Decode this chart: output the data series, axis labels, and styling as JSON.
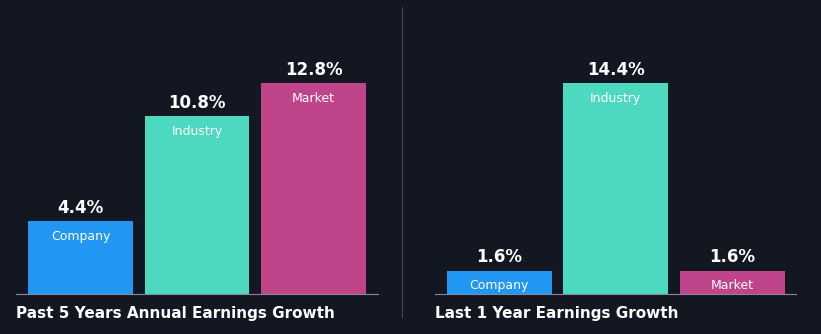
{
  "background_color": "#131722",
  "chart1": {
    "title": "Past 5 Years Annual Earnings Growth",
    "categories": [
      "Company",
      "Industry",
      "Market"
    ],
    "values": [
      4.4,
      10.8,
      12.8
    ],
    "colors": [
      "#2196f3",
      "#4dd9c0",
      "#c0448a"
    ],
    "labels": [
      "4.4%",
      "10.8%",
      "12.8%"
    ]
  },
  "chart2": {
    "title": "Last 1 Year Earnings Growth",
    "categories": [
      "Company",
      "Industry",
      "Market"
    ],
    "values": [
      1.6,
      14.4,
      1.6
    ],
    "colors": [
      "#2196f3",
      "#4dd9c0",
      "#c0448a"
    ],
    "labels": [
      "1.6%",
      "14.4%",
      "1.6%"
    ]
  },
  "text_color": "#ffffff",
  "label_fontsize": 12,
  "category_fontsize": 9,
  "title_fontsize": 11,
  "bar_width": 0.9
}
